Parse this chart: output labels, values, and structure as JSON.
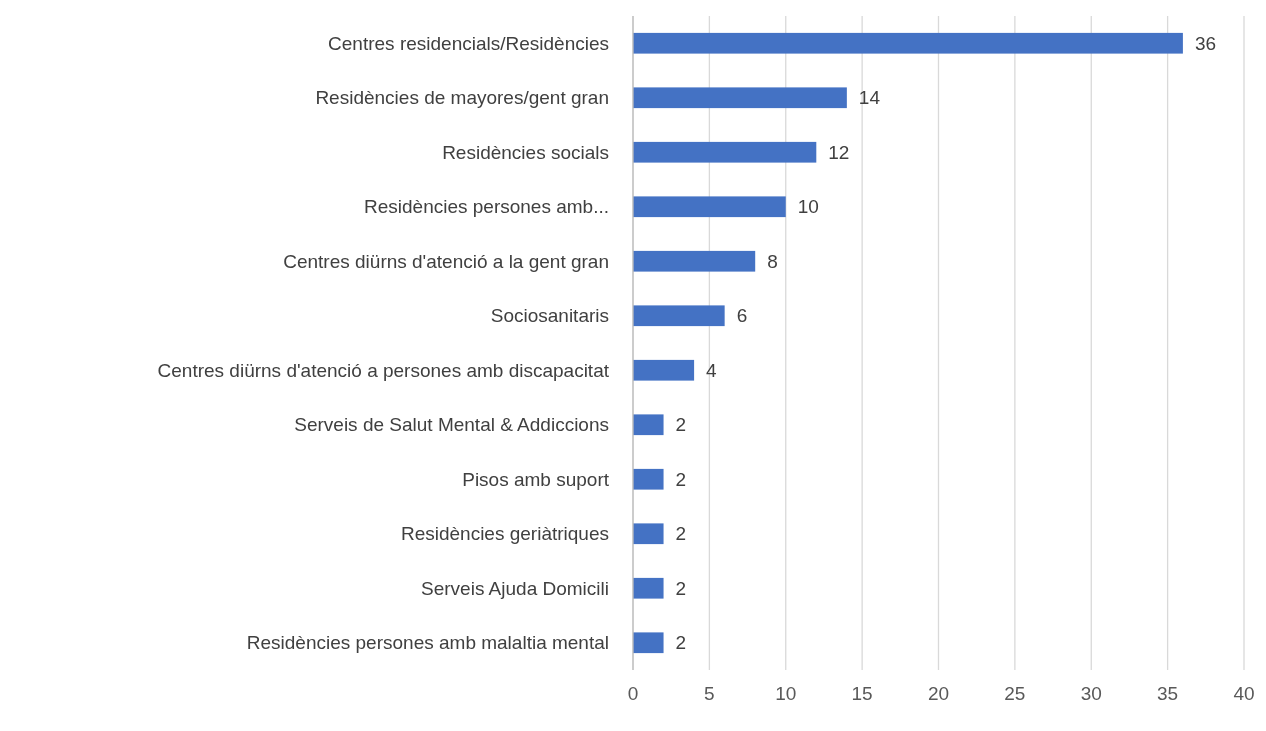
{
  "chart_data": {
    "type": "bar",
    "orientation": "horizontal",
    "categories": [
      "Centres residencials/Residències",
      "Residències de mayores/gent gran",
      "Residències socials",
      "Residències persones amb...",
      "Centres diürns d'atenció a la gent gran",
      "Sociosanitaris",
      "Centres diürns d'atenció a persones amb discapacitat",
      "Serveis de Salut Mental & Addiccions",
      "Pisos amb suport",
      "Residències geriàtriques",
      "Serveis Ajuda Domicili",
      "Residències persones amb malaltia mental"
    ],
    "values": [
      36,
      14,
      12,
      10,
      8,
      6,
      4,
      2,
      2,
      2,
      2,
      2
    ],
    "color": "#4472c4",
    "xlim": [
      0,
      40
    ],
    "xticks": [
      0,
      5,
      10,
      15,
      20,
      25,
      30,
      35,
      40
    ],
    "grid": "x",
    "data_labels": true
  }
}
